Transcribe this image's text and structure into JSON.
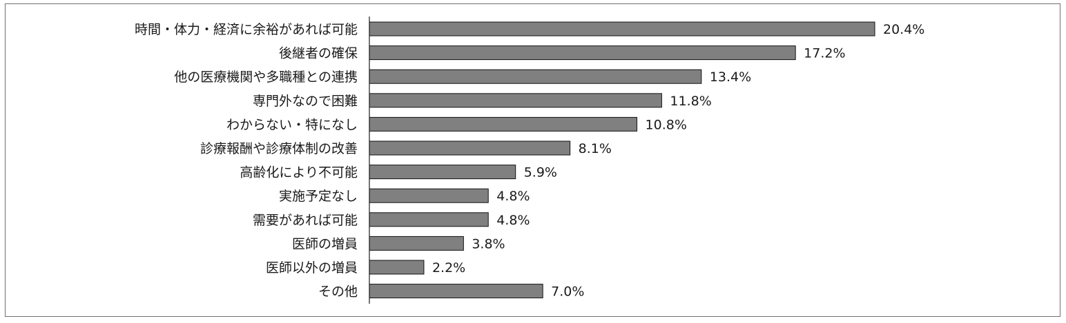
{
  "chart_data": {
    "type": "bar",
    "orientation": "horizontal",
    "categories": [
      "時間・体力・経済に余裕があれば可能",
      "後継者の確保",
      "他の医療機関や多職種との連携",
      "専門外なので困難",
      "わからない・特になし",
      "診療報酬や診療体制の改善",
      "高齢化により不可能",
      "実施予定なし",
      "需要があれば可能",
      "医師の増員",
      "医師以外の増員",
      "その他"
    ],
    "values": [
      20.4,
      17.2,
      13.4,
      11.8,
      10.8,
      8.1,
      5.9,
      4.8,
      4.8,
      3.8,
      2.2,
      7.0
    ],
    "value_labels": [
      "20.4%",
      "17.2%",
      "13.4%",
      "11.8%",
      "10.8%",
      "8.1%",
      "5.9%",
      "4.8%",
      "4.8%",
      "3.8%",
      "2.2%",
      "7.0%"
    ],
    "value_unit": "%",
    "xlim": [
      0,
      20.4
    ],
    "grid": false,
    "legend": "none",
    "bar_color": "#808080",
    "title": "",
    "xlabel": "",
    "ylabel": ""
  }
}
